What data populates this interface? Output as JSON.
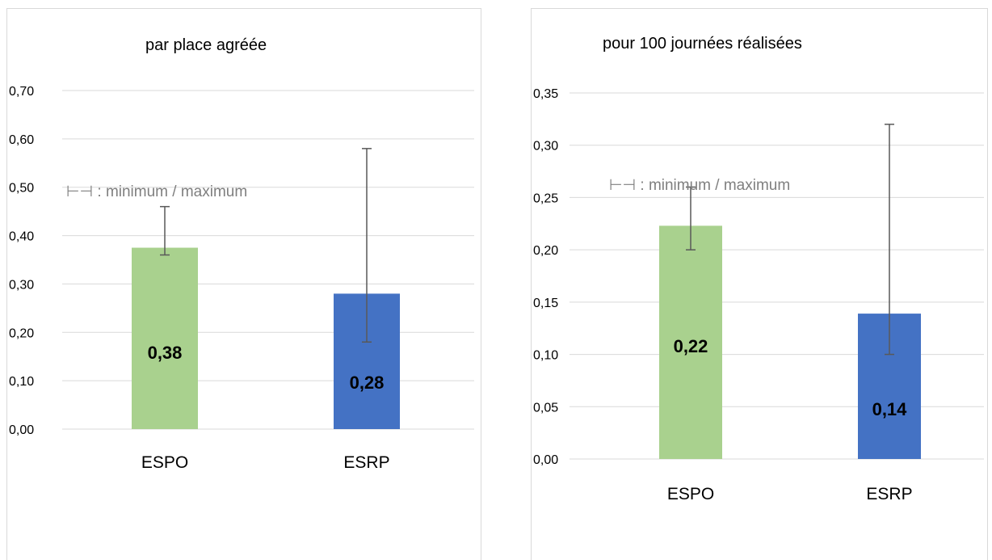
{
  "chart_data": [
    {
      "type": "bar",
      "title": "par place agréée",
      "annotation": "⊢⊣ : minimum / maximum",
      "categories": [
        "ESPO",
        "ESRP"
      ],
      "values": [
        0.375,
        0.28
      ],
      "value_labels": [
        "0,38",
        "0,28"
      ],
      "error_bars": {
        "min": [
          0.36,
          0.18
        ],
        "max": [
          0.46,
          0.58
        ]
      },
      "colors": [
        "#a9d18e",
        "#4472c4"
      ],
      "ylim": [
        0,
        0.7
      ],
      "yticks": [
        0,
        0.1,
        0.2,
        0.3,
        0.4,
        0.5,
        0.6,
        0.7
      ],
      "ytick_labels": [
        "0,00",
        "0,10",
        "0,20",
        "0,30",
        "0,40",
        "0,50",
        "0,60",
        "0,70"
      ],
      "grid": true,
      "xlabel": "",
      "ylabel": ""
    },
    {
      "type": "bar",
      "title": "pour 100 journées réalisées",
      "annotation": "⊢⊣ : minimum / maximum",
      "categories": [
        "ESPO",
        "ESRP"
      ],
      "values": [
        0.223,
        0.139
      ],
      "value_labels": [
        "0,22",
        "0,14"
      ],
      "error_bars": {
        "min": [
          0.2,
          0.1
        ],
        "max": [
          0.26,
          0.32
        ]
      },
      "colors": [
        "#a9d18e",
        "#4472c4"
      ],
      "ylim": [
        0,
        0.35
      ],
      "yticks": [
        0,
        0.05,
        0.1,
        0.15,
        0.2,
        0.25,
        0.3,
        0.35
      ],
      "ytick_labels": [
        "0,00",
        "0,05",
        "0,10",
        "0,15",
        "0,20",
        "0,25",
        "0,30",
        "0,35"
      ],
      "grid": true,
      "xlabel": "",
      "ylabel": ""
    }
  ]
}
